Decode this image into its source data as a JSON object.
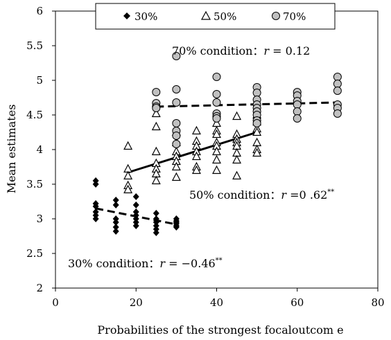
{
  "chart_data": {
    "type": "scatter",
    "title": "",
    "xlabel": "Probabilities of the strongest focaloutcom e",
    "ylabel": "Mean estimates",
    "xlim": [
      0,
      80
    ],
    "ylim": [
      2,
      6
    ],
    "x_ticks": [
      "0",
      "20",
      "40",
      "60",
      "80"
    ],
    "y_ticks": [
      "2",
      "2.5",
      "3",
      "3.5",
      "4",
      "4.5",
      "5",
      "5.5",
      "6"
    ],
    "legend_position": "top",
    "series": [
      {
        "name": "30%",
        "marker": "diamond",
        "color": "#000000",
        "trend_line": {
          "x": [
            10,
            30
          ],
          "y": [
            3.15,
            2.92
          ],
          "style": "dashed"
        },
        "points": [
          [
            10,
            3.55
          ],
          [
            10,
            3.5
          ],
          [
            10,
            3.22
          ],
          [
            10,
            3.18
          ],
          [
            10,
            3.1
          ],
          [
            10,
            3.05
          ],
          [
            10,
            3.0
          ],
          [
            15,
            3.27
          ],
          [
            15,
            3.2
          ],
          [
            15,
            3.0
          ],
          [
            15,
            2.95
          ],
          [
            15,
            2.88
          ],
          [
            15,
            2.82
          ],
          [
            20,
            3.32
          ],
          [
            20,
            3.2
          ],
          [
            20,
            3.1
          ],
          [
            20,
            3.05
          ],
          [
            20,
            3.0
          ],
          [
            20,
            2.95
          ],
          [
            20,
            2.9
          ],
          [
            25,
            3.08
          ],
          [
            25,
            3.0
          ],
          [
            25,
            2.95
          ],
          [
            25,
            2.9
          ],
          [
            25,
            2.85
          ],
          [
            25,
            2.8
          ],
          [
            30,
            3.0
          ],
          [
            30,
            2.97
          ],
          [
            30,
            2.95
          ],
          [
            30,
            2.93
          ],
          [
            30,
            2.9
          ],
          [
            30,
            2.88
          ]
        ]
      },
      {
        "name": "50%",
        "marker": "triangle",
        "color": "#000000",
        "trend_line": {
          "x": [
            18,
            50
          ],
          "y": [
            3.67,
            4.25
          ],
          "style": "solid"
        },
        "points": [
          [
            18,
            4.05
          ],
          [
            18,
            3.72
          ],
          [
            18,
            3.62
          ],
          [
            18,
            3.48
          ],
          [
            18,
            3.42
          ],
          [
            25,
            4.52
          ],
          [
            25,
            4.33
          ],
          [
            25,
            3.97
          ],
          [
            25,
            3.8
          ],
          [
            25,
            3.72
          ],
          [
            25,
            3.65
          ],
          [
            25,
            3.55
          ],
          [
            30,
            4.25
          ],
          [
            30,
            4.1
          ],
          [
            30,
            3.97
          ],
          [
            30,
            3.9
          ],
          [
            30,
            3.83
          ],
          [
            30,
            3.75
          ],
          [
            30,
            3.6
          ],
          [
            35,
            4.27
          ],
          [
            35,
            4.12
          ],
          [
            35,
            4.05
          ],
          [
            35,
            3.97
          ],
          [
            35,
            3.9
          ],
          [
            35,
            3.75
          ],
          [
            35,
            3.7
          ],
          [
            40,
            4.38
          ],
          [
            40,
            4.27
          ],
          [
            40,
            4.22
          ],
          [
            40,
            4.1
          ],
          [
            40,
            4.05
          ],
          [
            40,
            3.97
          ],
          [
            40,
            3.85
          ],
          [
            40,
            3.7
          ],
          [
            45,
            4.48
          ],
          [
            45,
            4.22
          ],
          [
            45,
            4.15
          ],
          [
            45,
            4.1
          ],
          [
            45,
            4.05
          ],
          [
            45,
            3.95
          ],
          [
            45,
            3.85
          ],
          [
            45,
            3.62
          ],
          [
            50,
            4.5
          ],
          [
            50,
            4.4
          ],
          [
            50,
            4.3
          ],
          [
            50,
            4.25
          ],
          [
            50,
            4.1
          ],
          [
            50,
            4.0
          ],
          [
            50,
            3.95
          ]
        ]
      },
      {
        "name": "70%",
        "marker": "circle",
        "color": "#c0c0c0",
        "trend_line": {
          "x": [
            25,
            70
          ],
          "y": [
            4.62,
            4.68
          ],
          "style": "dashed"
        },
        "points": [
          [
            25,
            4.83
          ],
          [
            25,
            4.67
          ],
          [
            25,
            4.62
          ],
          [
            25,
            4.6
          ],
          [
            30,
            5.35
          ],
          [
            30,
            4.87
          ],
          [
            30,
            4.68
          ],
          [
            30,
            4.38
          ],
          [
            30,
            4.27
          ],
          [
            30,
            4.2
          ],
          [
            30,
            4.08
          ],
          [
            40,
            5.05
          ],
          [
            40,
            4.8
          ],
          [
            40,
            4.68
          ],
          [
            40,
            4.52
          ],
          [
            40,
            4.48
          ],
          [
            40,
            4.45
          ],
          [
            50,
            4.9
          ],
          [
            50,
            4.82
          ],
          [
            50,
            4.72
          ],
          [
            50,
            4.65
          ],
          [
            50,
            4.6
          ],
          [
            50,
            4.55
          ],
          [
            50,
            4.5
          ],
          [
            50,
            4.42
          ],
          [
            50,
            4.38
          ],
          [
            60,
            4.83
          ],
          [
            60,
            4.78
          ],
          [
            60,
            4.7
          ],
          [
            60,
            4.65
          ],
          [
            60,
            4.55
          ],
          [
            60,
            4.45
          ],
          [
            70,
            5.05
          ],
          [
            70,
            4.95
          ],
          [
            70,
            4.85
          ],
          [
            70,
            4.65
          ],
          [
            70,
            4.6
          ],
          [
            70,
            4.52
          ]
        ]
      }
    ],
    "annotations": [
      {
        "name": "annotation-70",
        "label": "70% condition：",
        "stat": "r",
        "value": " = 0.12",
        "sig": ""
      },
      {
        "name": "annotation-50",
        "label": "50% condition：",
        "stat": "r",
        "value": " =0 .62",
        "sig": "**"
      },
      {
        "name": "annotation-30",
        "label": "30% condition：",
        "stat": "r",
        "value": " = −0.46",
        "sig": "**"
      }
    ]
  }
}
